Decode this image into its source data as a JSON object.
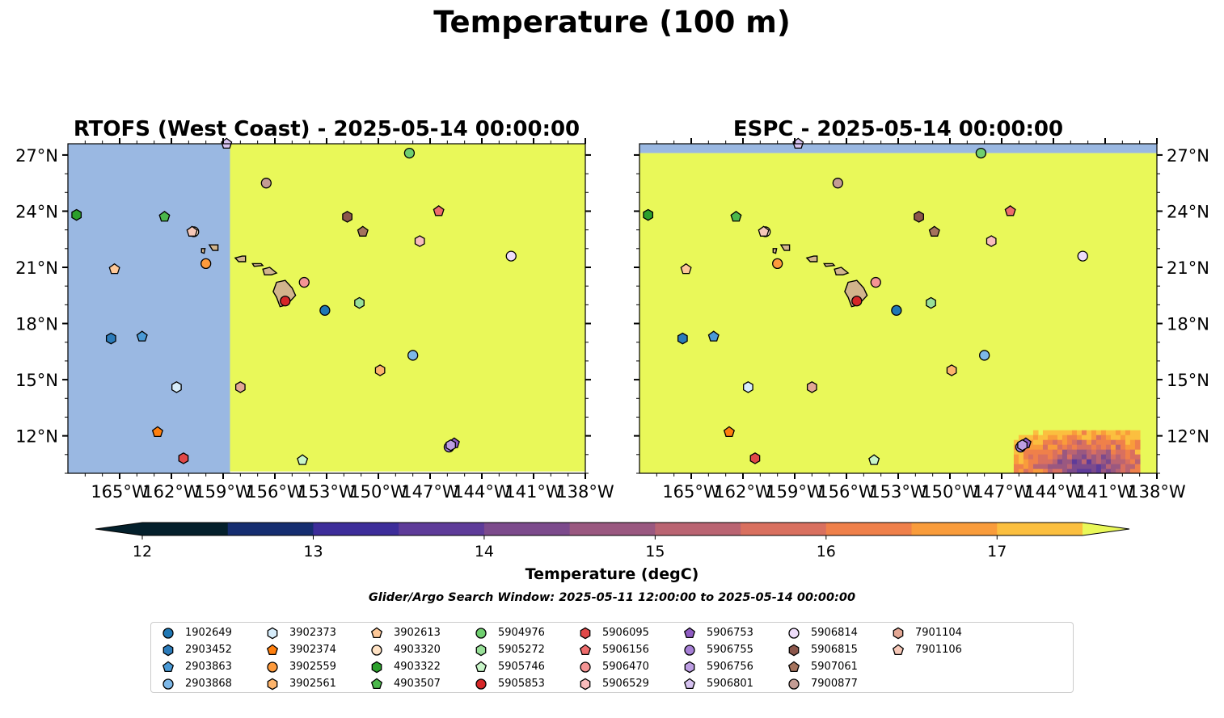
{
  "figure": {
    "title": "Temperature (100 m)",
    "colorbar_label": "Temperature (degC)",
    "search_window": "Glider/Argo Search Window: 2025-05-11 12:00:00 to 2025-05-14 00:00:00",
    "colormap": [
      "#04202c",
      "#152d70",
      "#3d2d9a",
      "#5e3b99",
      "#7c4a8c",
      "#9a5880",
      "#ba6472",
      "#d9705f",
      "#ef804a",
      "#f99c3b",
      "#fbbf3f",
      "#e9f859"
    ],
    "colorbar_ticks": [
      "12",
      "13",
      "14",
      "15",
      "16",
      "17"
    ],
    "colorbar_range": [
      11.75,
      17.75
    ],
    "land_color": "#d2b48c",
    "no_data_color": "#9ab8e2"
  },
  "chart_data": [
    {
      "type": "heatmap",
      "title": "RTOFS (West Coast) - 2025-05-14 00:00:00",
      "xlim": [
        -168,
        -138
      ],
      "ylim": [
        10,
        27.6
      ],
      "x_ticks": [
        "165°W",
        "162°W",
        "159°W",
        "156°W",
        "153°W",
        "150°W",
        "147°W",
        "144°W",
        "141°W",
        "138°W"
      ],
      "y_ticks": [
        "12°N",
        "15°N",
        "18°N",
        "21°N",
        "24°N",
        "27°N"
      ],
      "y_tick_side": "left",
      "fields": [
        {
          "lon": [
            -168,
            -158.6
          ],
          "lat": [
            10,
            27.6
          ],
          "value": "no data"
        },
        {
          "lon": [
            -158.6,
            -138
          ],
          "lat": [
            10.1,
            27.6
          ],
          "value": "> 17.5"
        }
      ]
    },
    {
      "type": "heatmap",
      "title": "ESPC - 2025-05-14 00:00:00",
      "xlim": [
        -168,
        -138
      ],
      "ylim": [
        10,
        27.6
      ],
      "x_ticks": [
        "165°W",
        "162°W",
        "159°W",
        "156°W",
        "153°W",
        "150°W",
        "147°W",
        "144°W",
        "141°W",
        "138°W"
      ],
      "y_ticks": [
        "12°N",
        "15°N",
        "18°N",
        "21°N",
        "24°N",
        "27°N"
      ],
      "y_tick_side": "right",
      "fields": [
        {
          "lon": [
            -168,
            -138
          ],
          "lat": [
            27.1,
            27.6
          ],
          "value": "no data"
        },
        {
          "lon": [
            -168,
            -138
          ],
          "lat": [
            10,
            27.1
          ],
          "value": "> 17.5"
        },
        {
          "lon": [
            -146,
            -139
          ],
          "lat": [
            10,
            12.3
          ],
          "value": "13–17 (cool patch)"
        }
      ]
    }
  ],
  "floats": [
    {
      "id": "1902649",
      "marker": "circle",
      "color": "#1f77b4",
      "lon": -153.1,
      "lat": 18.7
    },
    {
      "id": "2903452",
      "marker": "hexagon",
      "color": "#2b7bba",
      "lon": -165.5,
      "lat": 17.2
    },
    {
      "id": "2903863",
      "marker": "pentagon",
      "color": "#4a9ad6",
      "lon": -163.7,
      "lat": 17.3
    },
    {
      "id": "2903868",
      "marker": "circle",
      "color": "#7db8e8",
      "lon": -148.0,
      "lat": 16.3
    },
    {
      "id": "3902373",
      "marker": "hexagon",
      "color": "#d6ecfa",
      "lon": -161.7,
      "lat": 14.6
    },
    {
      "id": "3902374",
      "marker": "pentagon",
      "color": "#ff7f0e",
      "lon": -162.8,
      "lat": 12.2
    },
    {
      "id": "3902559",
      "marker": "circle",
      "color": "#fd9a3c",
      "lon": -160.0,
      "lat": 21.2
    },
    {
      "id": "3902561",
      "marker": "hexagon",
      "color": "#fdb46b",
      "lon": -149.9,
      "lat": 15.5
    },
    {
      "id": "3902613",
      "marker": "pentagon",
      "color": "#fec898",
      "lon": -165.3,
      "lat": 20.9
    },
    {
      "id": "4903320",
      "marker": "circle",
      "color": "#ffe2c4",
      "lon": -160.7,
      "lat": 22.9
    },
    {
      "id": "4903322",
      "marker": "hexagon",
      "color": "#2ca02c",
      "lon": -167.5,
      "lat": 23.8
    },
    {
      "id": "4903507",
      "marker": "pentagon",
      "color": "#4bb84b",
      "lon": -162.4,
      "lat": 23.7
    },
    {
      "id": "5904976",
      "marker": "circle",
      "color": "#6fcf6f",
      "lon": -148.2,
      "lat": 27.1
    },
    {
      "id": "5905272",
      "marker": "hexagon",
      "color": "#98e098",
      "lon": -151.1,
      "lat": 19.1
    },
    {
      "id": "5905746",
      "marker": "pentagon",
      "color": "#c8f5c8",
      "lon": -154.4,
      "lat": 10.7
    },
    {
      "id": "5905853",
      "marker": "circle",
      "color": "#d62728",
      "lon": -155.4,
      "lat": 19.2
    },
    {
      "id": "5906095",
      "marker": "hexagon",
      "color": "#e04848",
      "lon": -161.3,
      "lat": 10.8
    },
    {
      "id": "5906156",
      "marker": "pentagon",
      "color": "#ee6b6b",
      "lon": -146.5,
      "lat": 24.0
    },
    {
      "id": "5906470",
      "marker": "circle",
      "color": "#f49494",
      "lon": -154.3,
      "lat": 20.2
    },
    {
      "id": "5906529",
      "marker": "hexagon",
      "color": "#f8bcbc",
      "lon": -147.6,
      "lat": 22.4
    },
    {
      "id": "5906753",
      "marker": "pentagon",
      "color": "#8f5cc2",
      "lon": -145.6,
      "lat": 11.6
    },
    {
      "id": "5906755",
      "marker": "circle",
      "color": "#a67fd6",
      "lon": -145.9,
      "lat": 11.4
    },
    {
      "id": "5906756",
      "marker": "hexagon",
      "color": "#bd9ee3",
      "lon": -145.8,
      "lat": 11.5
    },
    {
      "id": "5906801",
      "marker": "pentagon",
      "color": "#d6c2f0",
      "lon": -158.8,
      "lat": 27.6
    },
    {
      "id": "5906814",
      "marker": "circle",
      "color": "#eedcfa",
      "lon": -142.3,
      "lat": 21.6
    },
    {
      "id": "5906815",
      "marker": "hexagon",
      "color": "#8c564b",
      "lon": -151.8,
      "lat": 23.7
    },
    {
      "id": "5907061",
      "marker": "pentagon",
      "color": "#a5735d",
      "lon": -150.9,
      "lat": 22.9
    },
    {
      "id": "7900877",
      "marker": "circle",
      "color": "#c49c94",
      "lon": -156.5,
      "lat": 25.5
    },
    {
      "id": "7901104",
      "marker": "hexagon",
      "color": "#e3a794",
      "lon": -158.0,
      "lat": 14.6
    },
    {
      "id": "7901106",
      "marker": "pentagon",
      "color": "#f6c8b8",
      "lon": -160.8,
      "lat": 22.9
    }
  ]
}
